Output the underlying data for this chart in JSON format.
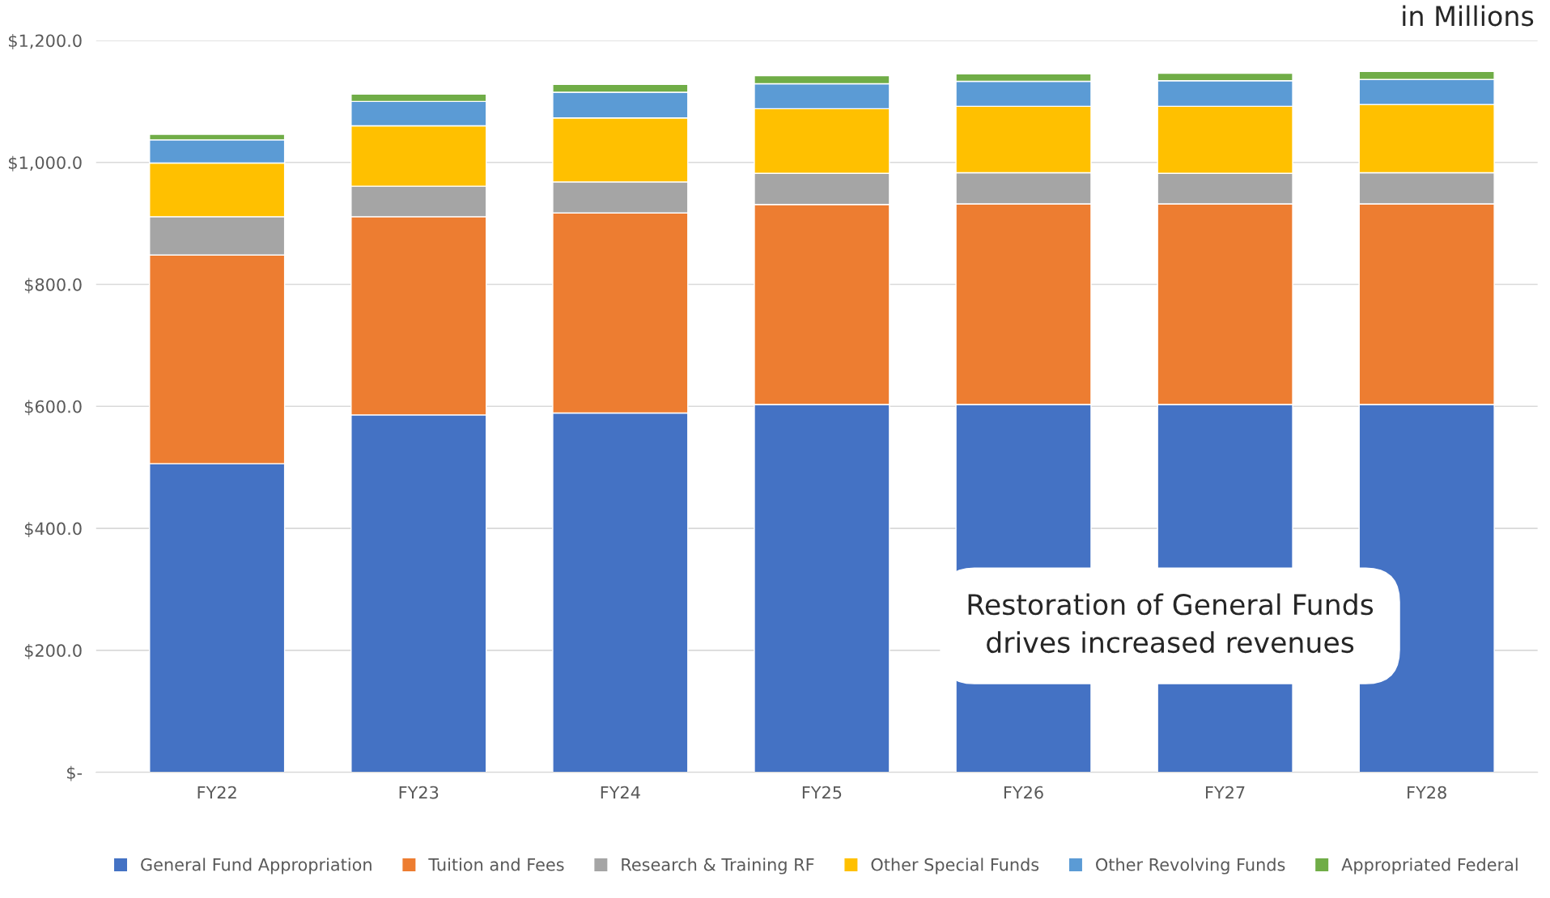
{
  "chart_data": {
    "type": "bar",
    "stacked": true,
    "subtitle": "in Millions",
    "categories": [
      "FY22",
      "FY23",
      "FY24",
      "FY25",
      "FY26",
      "FY27",
      "FY28"
    ],
    "series": [
      {
        "name": "General Fund Appropriation",
        "color": "#4472c4",
        "values": [
          506,
          586,
          589,
          603,
          603,
          603,
          603
        ]
      },
      {
        "name": "Tuition and Fees",
        "color": "#ed7d31",
        "values": [
          342,
          325,
          328,
          328,
          329,
          329,
          329
        ]
      },
      {
        "name": "Research & Training RF",
        "color": "#a5a5a5",
        "values": [
          63,
          50,
          51,
          51,
          51,
          50,
          51
        ]
      },
      {
        "name": "Other Special Funds",
        "color": "#ffc000",
        "values": [
          88,
          99,
          105,
          106,
          109,
          110,
          112
        ]
      },
      {
        "name": "Other Revolving Funds",
        "color": "#5b9bd5",
        "values": [
          38,
          40,
          42,
          41,
          41,
          42,
          41
        ]
      },
      {
        "name": "Appropriated Federal",
        "color": "#70ad47",
        "values": [
          9,
          12,
          13,
          13,
          12,
          12,
          13
        ]
      }
    ],
    "ylim": [
      0,
      1200
    ],
    "yticks": [
      {
        "value": 0,
        "label": "$-"
      },
      {
        "value": 200,
        "label": "$200.0"
      },
      {
        "value": 400,
        "label": "$400.0"
      },
      {
        "value": 600,
        "label": "$600.0"
      },
      {
        "value": 800,
        "label": "$800.0"
      },
      {
        "value": 1000,
        "label": "$1,000.0"
      },
      {
        "value": 1200,
        "label": "$1,200.0"
      }
    ],
    "grid": "y",
    "legend": "bottom",
    "annotations": [
      "Restoration of General Funds\ndrives increased revenues"
    ]
  }
}
